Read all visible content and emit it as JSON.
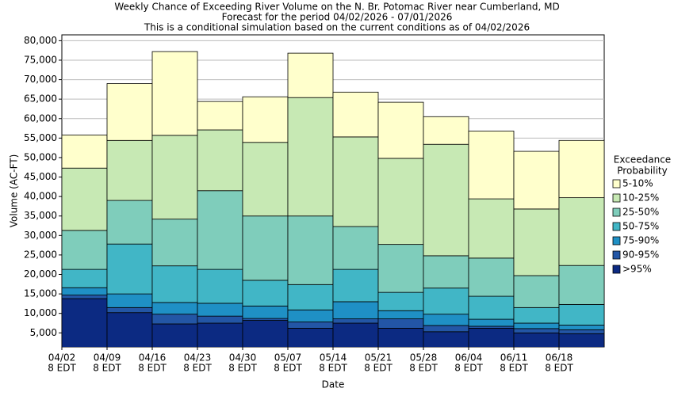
{
  "chart_data": {
    "type": "stacked_bar",
    "title": [
      "Weekly Chance of Exceeding River Volume on the N. Br. Potomac River near Cumberland, MD",
      "Forecast for the period 04/02/2026 - 07/01/2026",
      "This is a conditional simulation based on the current conditions as of 04/02/2026"
    ],
    "categories": [
      "04/02",
      "04/09",
      "04/16",
      "04/23",
      "04/30",
      "05/07",
      "05/14",
      "05/21",
      "05/28",
      "06/04",
      "06/11",
      "06/18"
    ],
    "category_sublabel": "8 EDT",
    "x_label": "Date",
    "y_label": "Volume (AC-FT)",
    "legend_title": [
      "Exceedance",
      "Probability"
    ],
    "legend": "right",
    "series": [
      {
        "name": ">95%",
        "color": "#0c2a82",
        "values": [
          13800,
          10200,
          7300,
          7500,
          8200,
          6200,
          7500,
          6200,
          5300,
          6200,
          5000,
          4800
        ]
      },
      {
        "name": "90-95%",
        "color": "#2356a6",
        "values": [
          900,
          1300,
          2500,
          1800,
          500,
          1600,
          1100,
          2400,
          1600,
          500,
          1100,
          1000
        ]
      },
      {
        "name": "75-90%",
        "color": "#1f90c5",
        "values": [
          1900,
          3500,
          3000,
          3300,
          3200,
          3100,
          4400,
          2100,
          2900,
          1800,
          1400,
          1200
        ]
      },
      {
        "name": "50-75%",
        "color": "#41b6c6",
        "values": [
          4700,
          12800,
          9400,
          8700,
          6600,
          6500,
          8300,
          4700,
          6700,
          5900,
          4000,
          5300
        ]
      },
      {
        "name": "25-50%",
        "color": "#7fcdbb",
        "values": [
          10000,
          11200,
          12000,
          20200,
          16500,
          17600,
          11000,
          12300,
          8300,
          9800,
          8200,
          10000
        ]
      },
      {
        "name": "10-25%",
        "color": "#c7e9b4",
        "values": [
          16000,
          15400,
          21500,
          15600,
          18900,
          30400,
          23000,
          22100,
          28600,
          15200,
          17100,
          17400
        ]
      },
      {
        "name": "5-10%",
        "color": "#ffffcc",
        "values": [
          8500,
          14600,
          21500,
          7300,
          11700,
          11400,
          11500,
          14400,
          7100,
          17400,
          14800,
          14700
        ]
      }
    ],
    "ylim": [
      1400,
      81500
    ],
    "yticks": [
      {
        "value": 5000,
        "label": "5,000"
      },
      {
        "value": 10000,
        "label": "10,000"
      },
      {
        "value": 15000,
        "label": "15,000"
      },
      {
        "value": 20000,
        "label": "20,000"
      },
      {
        "value": 25000,
        "label": "25,000"
      },
      {
        "value": 30000,
        "label": "30,000"
      },
      {
        "value": 35000,
        "label": "35,000"
      },
      {
        "value": 40000,
        "label": "40,000"
      },
      {
        "value": 45000,
        "label": "45,000"
      },
      {
        "value": 50000,
        "label": "50,000"
      },
      {
        "value": 55000,
        "label": "55,000"
      },
      {
        "value": 60000,
        "label": "60,000"
      },
      {
        "value": 65000,
        "label": "65,000"
      },
      {
        "value": 70000,
        "label": "70,000"
      },
      {
        "value": 75000,
        "label": "75,000"
      },
      {
        "value": 80000,
        "label": "80,000"
      }
    ],
    "grid": true
  }
}
